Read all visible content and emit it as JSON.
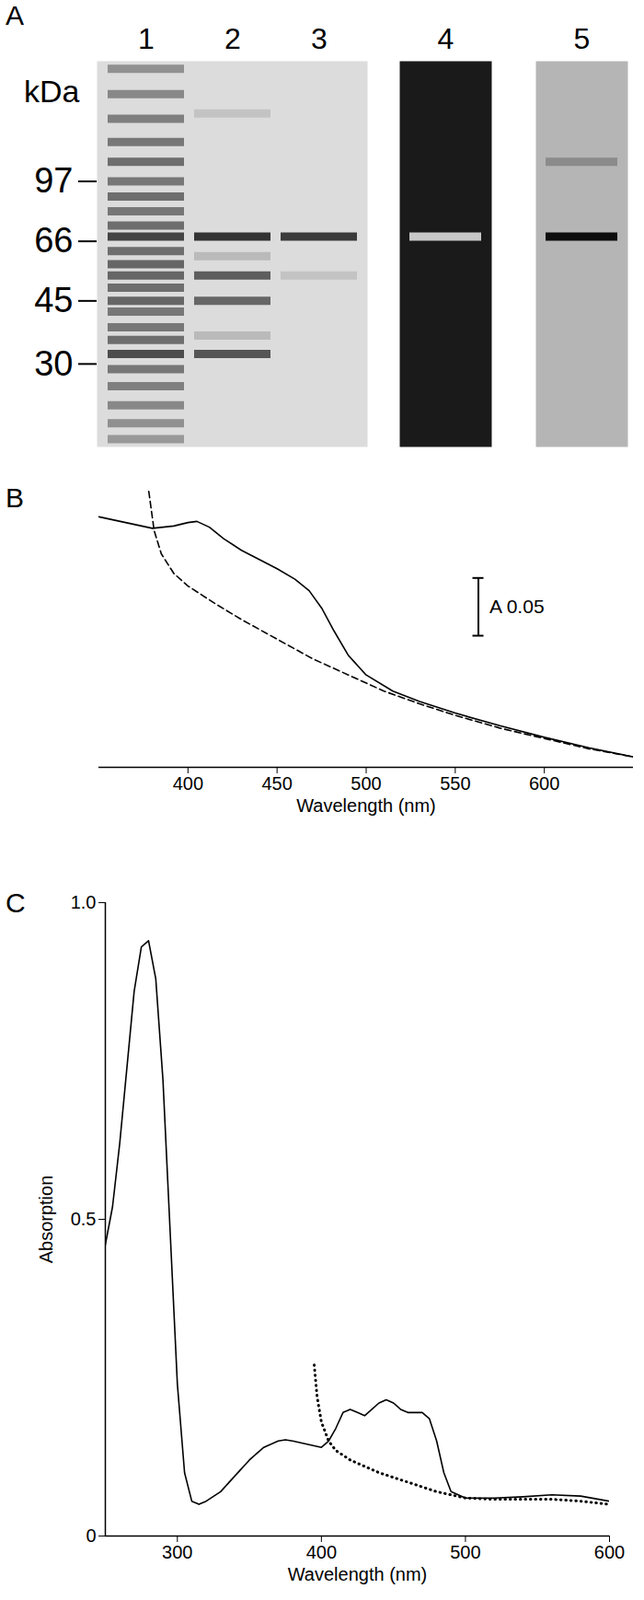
{
  "chart_data": [
    {
      "type": "gel",
      "title": "A",
      "y_label": "kDa",
      "log": "y",
      "ylim": [
        17.6,
        210
      ],
      "yticks": [
        97,
        66,
        45,
        30
      ],
      "images": [
        {
          "color": "#dcdcdc",
          "lanes": [
            {
              "name": "1",
              "color": "#333333",
              "kDa": [
                200,
                170,
                145,
                125,
                110,
                97,
                88,
                80,
                73,
                68,
                62,
                57,
                53,
                49,
                45,
                42,
                38,
                35,
                32,
                29,
                26,
                23,
                20.5,
                18.5
              ],
              "intensity": [
                0.45,
                0.5,
                0.55,
                0.6,
                0.65,
                0.6,
                0.65,
                0.6,
                0.65,
                0.9,
                0.65,
                0.7,
                0.7,
                0.65,
                0.7,
                0.6,
                0.6,
                0.65,
                0.85,
                0.6,
                0.55,
                0.5,
                0.45,
                0.4
              ]
            },
            {
              "name": "2",
              "color": "#333333",
              "kDa": [
                150,
                68,
                60,
                53,
                45,
                36,
                32
              ],
              "intensity": [
                0.15,
                1,
                0.2,
                0.75,
                0.7,
                0.2,
                0.8
              ]
            },
            {
              "name": "3",
              "color": "#333333",
              "kDa": [
                68,
                53
              ],
              "intensity": [
                0.95,
                0.15
              ]
            }
          ]
        },
        {
          "color": "#1a1a1a",
          "lanes": [
            {
              "name": "4",
              "color": "#e6e6e6",
              "kDa": [
                68
              ],
              "intensity": [
                0.85
              ]
            }
          ]
        },
        {
          "color": "#b5b5b5",
          "lanes": [
            {
              "name": "5",
              "color": "#0d0d0d",
              "kDa": [
                110,
                68
              ],
              "intensity": [
                0.25,
                1
              ]
            }
          ]
        }
      ]
    },
    {
      "type": "line",
      "title": "B",
      "x_label": "Wavelength (nm)",
      "xlim": [
        350,
        650
      ],
      "xticks": [
        400,
        450,
        500,
        550,
        600
      ],
      "ylim": [
        0,
        0.24
      ],
      "tick_labels": "x",
      "series": [
        {
          "color": "#000000",
          "line_style": "solid",
          "x": [
            350,
            365,
            380,
            392,
            400,
            405,
            412,
            420,
            430,
            440,
            450,
            460,
            468,
            475,
            482,
            490,
            500,
            515,
            530,
            550,
            575,
            600,
            625,
            650
          ],
          "values": [
            0.217,
            0.212,
            0.207,
            0.209,
            0.212,
            0.213,
            0.208,
            0.198,
            0.188,
            0.18,
            0.172,
            0.163,
            0.153,
            0.138,
            0.118,
            0.097,
            0.08,
            0.066,
            0.057,
            0.047,
            0.036,
            0.026,
            0.017,
            0.009
          ]
        },
        {
          "color": "#000000",
          "line_style": "dashed",
          "x": [
            378,
            381,
            385,
            392,
            400,
            415,
            430,
            450,
            470,
            490,
            510,
            530,
            550,
            575,
            600,
            625,
            650
          ],
          "values": [
            0.239,
            0.205,
            0.185,
            0.168,
            0.157,
            0.142,
            0.128,
            0.111,
            0.094,
            0.08,
            0.066,
            0.055,
            0.045,
            0.034,
            0.025,
            0.016,
            0.009
          ]
        }
      ],
      "scale_bar": {
        "label": "A 0.05",
        "value": 0.05,
        "x": 563,
        "y": 0.114
      }
    },
    {
      "type": "line",
      "title": "C",
      "x_label": "Wavelength (nm)",
      "y_label": "Absorption",
      "xlim": [
        250,
        600
      ],
      "xticks": [
        300,
        400,
        500,
        600
      ],
      "ylim": [
        0,
        1
      ],
      "yticks": [
        0,
        0.5,
        {
          "value": 1,
          "label": "1.0"
        }
      ],
      "series": [
        {
          "color": "#000000",
          "line_style": "solid",
          "x": [
            250,
            255,
            260,
            265,
            270,
            275,
            280,
            285,
            290,
            295,
            300,
            305,
            310,
            315,
            320,
            330,
            340,
            350,
            360,
            370,
            375,
            380,
            390,
            400,
            405,
            410,
            415,
            420,
            425,
            430,
            435,
            440,
            445,
            450,
            455,
            460,
            465,
            470,
            475,
            480,
            485,
            490,
            500,
            520,
            540,
            560,
            580,
            600
          ],
          "values": [
            0.46,
            0.52,
            0.62,
            0.74,
            0.86,
            0.93,
            0.94,
            0.88,
            0.72,
            0.48,
            0.24,
            0.1,
            0.055,
            0.05,
            0.055,
            0.07,
            0.095,
            0.12,
            0.14,
            0.15,
            0.152,
            0.15,
            0.145,
            0.14,
            0.15,
            0.17,
            0.195,
            0.2,
            0.195,
            0.19,
            0.2,
            0.21,
            0.215,
            0.21,
            0.2,
            0.195,
            0.195,
            0.195,
            0.185,
            0.15,
            0.1,
            0.07,
            0.06,
            0.06,
            0.062,
            0.065,
            0.063,
            0.055
          ]
        },
        {
          "color": "#000000",
          "line_style": "dotted",
          "x": [
            395,
            397,
            400,
            405,
            410,
            420,
            430,
            440,
            460,
            480,
            500,
            520,
            540,
            560,
            580,
            600
          ],
          "values": [
            0.27,
            0.22,
            0.18,
            0.15,
            0.135,
            0.12,
            0.11,
            0.1,
            0.085,
            0.07,
            0.06,
            0.058,
            0.058,
            0.058,
            0.055,
            0.05
          ]
        }
      ]
    }
  ]
}
